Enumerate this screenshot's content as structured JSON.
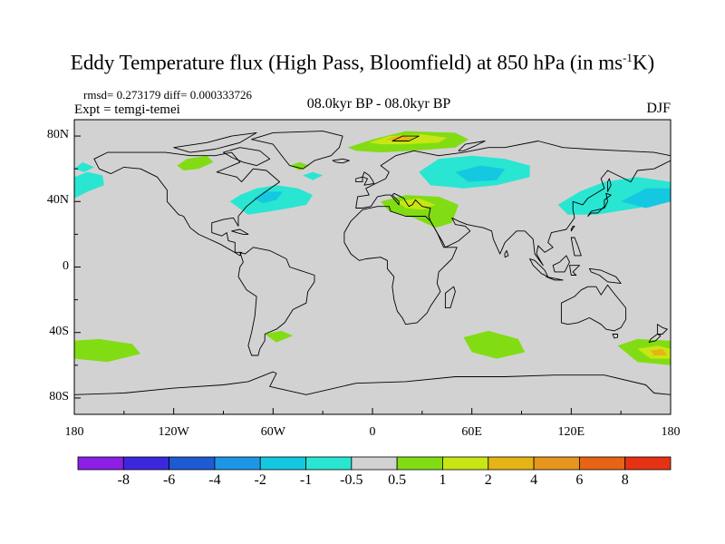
{
  "title_main": "Eddy Temperature flux (High Pass, Bloomfield) at 850 hPa (in ms",
  "title_sup": "-1",
  "title_end": "K)",
  "stats": "rmsd= 0.273179 diff= 0.000333726",
  "expt": "Expt = temgi-temei",
  "period": "08.0kyr BP - 08.0kyr BP",
  "season": "DJF",
  "y_axis_labels": [
    {
      "text": "80N",
      "lat": 80
    },
    {
      "text": "40N",
      "lat": 40
    },
    {
      "text": "0",
      "lat": 0
    },
    {
      "text": "40S",
      "lat": -40
    },
    {
      "text": "80S",
      "lat": -80
    }
  ],
  "x_axis_labels": [
    {
      "text": "180",
      "lon": -180
    },
    {
      "text": "120W",
      "lon": -120
    },
    {
      "text": "60W",
      "lon": -60
    },
    {
      "text": "0",
      "lon": 0
    },
    {
      "text": "60E",
      "lon": 60
    },
    {
      "text": "120E",
      "lon": 120
    },
    {
      "text": "180",
      "lon": 180
    }
  ],
  "colorbar": {
    "colors": [
      "#8c1ee6",
      "#3c28dc",
      "#1e5ad2",
      "#1e96e6",
      "#14c8e1",
      "#28e6d2",
      "#d2d2d2",
      "#82dc14",
      "#c8e614",
      "#e6b414",
      "#e6961e",
      "#e66414",
      "#e63214"
    ],
    "boundaries": [
      "-8",
      "-6",
      "-4",
      "-2",
      "-1",
      "-0.5",
      "0.5",
      "1",
      "2",
      "4",
      "6",
      "8"
    ]
  },
  "map_colors": {
    "ocean": "#d2d2d2",
    "neg_light": "#28e6d2",
    "neg_mid": "#14c8e1",
    "pos_light": "#82dc14",
    "pos_mid": "#c8e614",
    "pos_high": "#e6b414"
  },
  "chart_data": {
    "type": "heatmap",
    "title": "Eddy Temperature flux (High Pass, Bloomfield) at 850 hPa (in ms-1K)",
    "subtitle": "08.0kyr BP - 08.0kyr BP",
    "season": "DJF",
    "lon_range": [
      -180,
      180
    ],
    "lat_range": [
      -90,
      90
    ],
    "units": "ms-1K",
    "levels": [
      -8,
      -6,
      -4,
      -2,
      -1,
      -0.5,
      0.5,
      1,
      2,
      4,
      6,
      8
    ],
    "anomaly_regions": [
      {
        "region": "Greenland Sea / Arctic",
        "lon": [
          -15,
          60
        ],
        "lat": [
          72,
          82
        ],
        "level_range": [
          0.5,
          4
        ]
      },
      {
        "region": "Western North Atlantic",
        "lon": [
          -85,
          -35
        ],
        "lat": [
          35,
          50
        ],
        "level_range": [
          -1,
          -0.5
        ]
      },
      {
        "region": "Eastern North Pacific",
        "lon": [
          -180,
          -160
        ],
        "lat": [
          40,
          55
        ],
        "level_range": [
          -1,
          -0.5
        ]
      },
      {
        "region": "Canada",
        "lon": [
          -115,
          -95
        ],
        "lat": [
          58,
          70
        ],
        "level_range": [
          0.5,
          1
        ]
      },
      {
        "region": "Central Eurasia",
        "lon": [
          30,
          100
        ],
        "lat": [
          45,
          70
        ],
        "level_range": [
          -2,
          -0.5
        ]
      },
      {
        "region": "Mediterranean / Middle East",
        "lon": [
          5,
          50
        ],
        "lat": [
          25,
          45
        ],
        "level_range": [
          0.5,
          2
        ]
      },
      {
        "region": "East Asia / NW Pacific",
        "lon": [
          115,
          180
        ],
        "lat": [
          35,
          55
        ],
        "level_range": [
          -1,
          -0.5
        ]
      },
      {
        "region": "South Pacific",
        "lon": [
          -180,
          -140
        ],
        "lat": [
          -58,
          -45
        ],
        "level_range": [
          0.5,
          1
        ]
      },
      {
        "region": "South Atlantic",
        "lon": [
          -65,
          -50
        ],
        "lat": [
          -45,
          -40
        ],
        "level_range": [
          0.5,
          1
        ]
      },
      {
        "region": "South Indian Ocean",
        "lon": [
          55,
          90
        ],
        "lat": [
          -55,
          -40
        ],
        "level_range": [
          0.5,
          1
        ]
      },
      {
        "region": "South of Australia",
        "lon": [
          150,
          180
        ],
        "lat": [
          -60,
          -45
        ],
        "level_range": [
          0.5,
          4
        ]
      }
    ]
  }
}
